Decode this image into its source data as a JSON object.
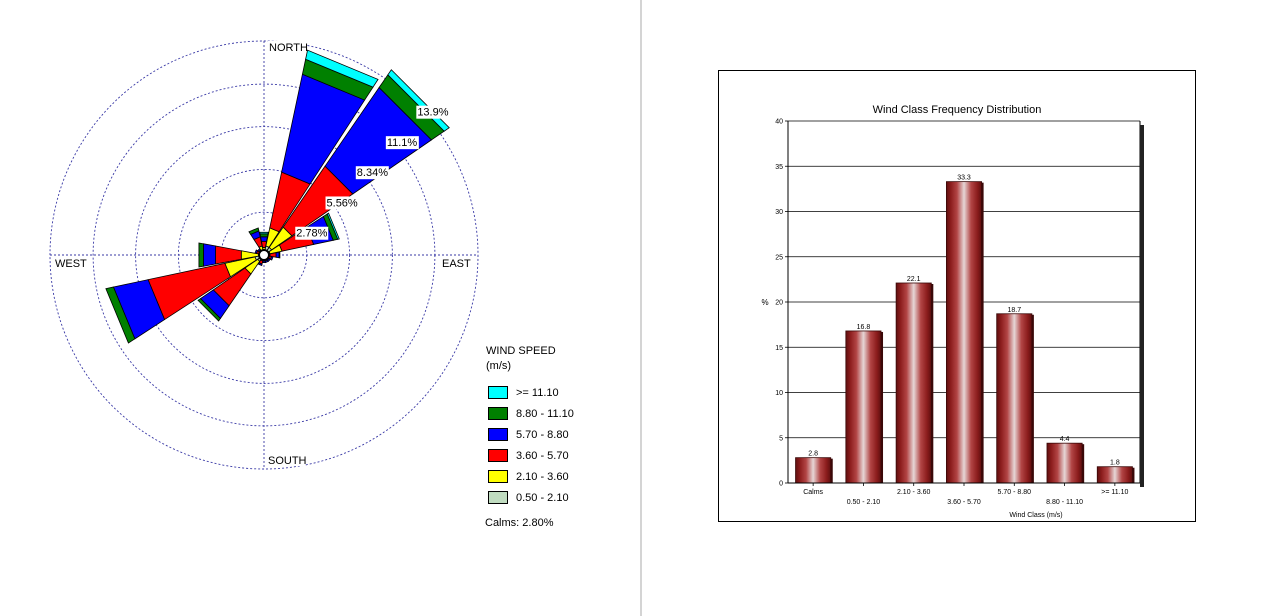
{
  "chart_data": [
    {
      "type": "wind-rose",
      "directions": [
        "N",
        "NNE",
        "NE",
        "ENE",
        "E",
        "ESE",
        "SE",
        "SSE",
        "S",
        "SSW",
        "SW",
        "WSW",
        "W",
        "WNW",
        "NW",
        "NNW"
      ],
      "speed_classes": [
        {
          "label": "0.50 - 2.10",
          "color": "#c0dcc0"
        },
        {
          "label": "2.10 - 3.60",
          "color": "#ffff00"
        },
        {
          "label": "3.60 - 5.70",
          "color": "#ff0000"
        },
        {
          "label": "5.70 - 8.80",
          "color": "#0000ff"
        },
        {
          "label": "8.80 - 11.10",
          "color": "#008000"
        },
        {
          "label": ">= 11.10",
          "color": "#00ffff"
        }
      ],
      "cumulative_percent": [
        [
          0.2,
          0.5,
          0.9,
          1.2,
          1.4,
          1.5
        ],
        [
          0.6,
          1.8,
          5.5,
          12.0,
          13.0,
          13.6
        ],
        [
          0.6,
          2.2,
          7.0,
          13.2,
          14.2,
          14.6
        ],
        [
          0.4,
          1.2,
          3.3,
          4.6,
          4.9,
          5.0
        ],
        [
          0.3,
          0.4,
          0.8,
          1.0,
          1.05,
          1.05
        ],
        [
          0.2,
          0.3,
          0.5,
          0.6,
          0.6,
          0.6
        ],
        [
          0.2,
          0.3,
          0.4,
          0.5,
          0.5,
          0.5
        ],
        [
          0.2,
          0.3,
          0.4,
          0.5,
          0.5,
          0.5
        ],
        [
          0.2,
          0.3,
          0.4,
          0.5,
          0.5,
          0.5
        ],
        [
          0.2,
          0.4,
          0.6,
          0.7,
          0.7,
          0.7
        ],
        [
          0.5,
          1.5,
          4.0,
          5.0,
          5.2,
          5.2
        ],
        [
          0.6,
          2.6,
          7.7,
          10.0,
          10.5,
          10.5
        ],
        [
          0.3,
          1.5,
          3.2,
          4.0,
          4.3,
          4.3
        ],
        [
          0.2,
          0.3,
          0.5,
          0.6,
          0.6,
          0.6
        ],
        [
          0.2,
          0.3,
          0.4,
          0.5,
          0.5,
          0.5
        ],
        [
          0.3,
          0.6,
          1.2,
          1.6,
          1.8,
          1.8
        ]
      ],
      "compass_labels": {
        "north": "NORTH",
        "south": "SOUTH",
        "east": "EAST",
        "west": "WEST"
      },
      "ring_labels": [
        "2.78%",
        "5.56%",
        "8.34%",
        "11.1%",
        "13.9%"
      ],
      "ring_values": [
        2.78,
        5.56,
        8.34,
        11.1,
        13.9
      ],
      "legend": {
        "title_line1": "WIND SPEED",
        "title_line2": "(m/s)",
        "items": [
          {
            "label": ">= 11.10",
            "color": "#00ffff"
          },
          {
            "label": "8.80 - 11.10",
            "color": "#008000"
          },
          {
            "label": "5.70 - 8.80",
            "color": "#0000ff"
          },
          {
            "label": "3.60 - 5.70",
            "color": "#ff0000"
          },
          {
            "label": "2.10 - 3.60",
            "color": "#ffff00"
          },
          {
            "label": "0.50 - 2.10",
            "color": "#c0dcc0"
          }
        ]
      },
      "calms_text": "Calms: 2.80%"
    },
    {
      "type": "bar",
      "title": "Wind Class Frequency Distribution",
      "xlabel": "Wind Class (m/s)",
      "ylabel": "%",
      "ylim": [
        0,
        40
      ],
      "yticks": [
        0,
        5,
        10,
        15,
        20,
        25,
        30,
        35,
        40
      ],
      "categories": [
        "Calms",
        "0.50 - 2.10",
        "2.10 - 3.60",
        "3.60 - 5.70",
        "5.70 - 8.80",
        "8.80 - 11.10",
        ">= 11.10"
      ],
      "values": [
        2.8,
        16.8,
        22.1,
        33.3,
        18.7,
        4.4,
        1.8
      ],
      "value_labels": [
        "2.8",
        "16.8",
        "22.1",
        "33.3",
        "18.7",
        "4.4",
        "1.8"
      ],
      "bar_color": "#8b1c1c",
      "grid": true
    }
  ]
}
